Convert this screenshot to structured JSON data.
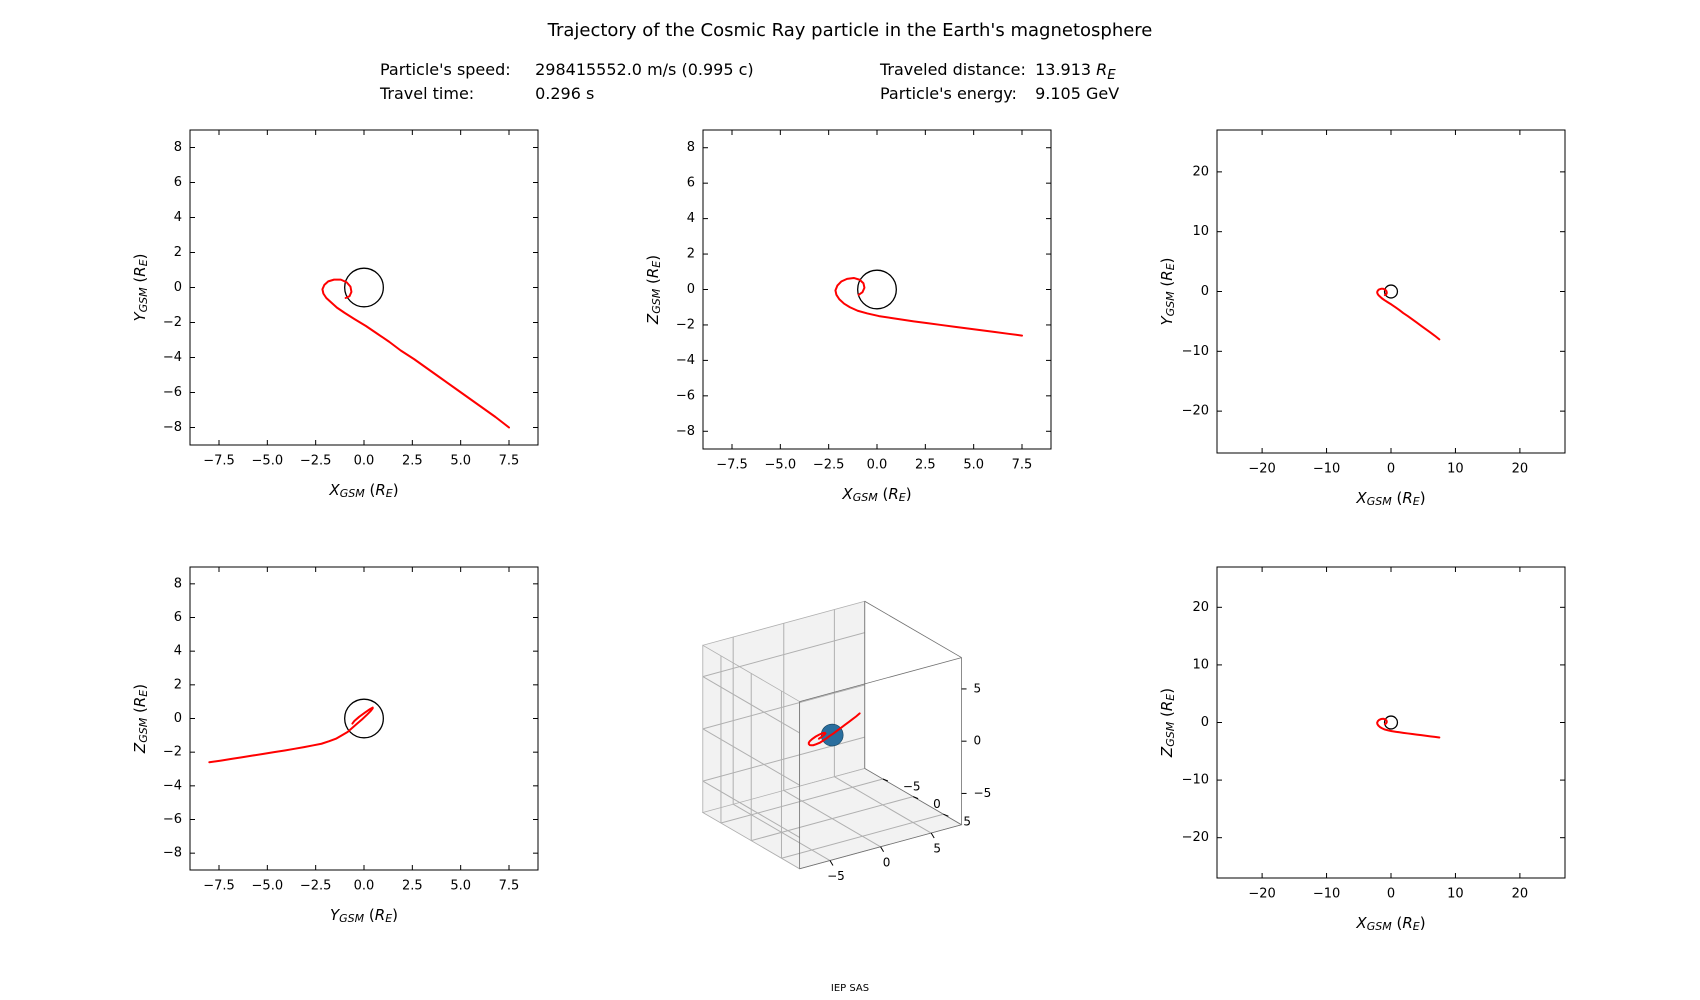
{
  "title": "Trajectory of the Cosmic Ray particle in the Earth's magnetosphere",
  "info": {
    "speed_label": "Particle's speed:",
    "speed_value": "298415552.0 m/s (0.995 c)",
    "time_label": "Travel time:",
    "time_value": "0.296 s",
    "distance_label": "Traveled distance:",
    "distance_value_prefix": "13.913 ",
    "distance_value_unit": "R",
    "distance_value_sub": "E",
    "energy_label": "Particle's energy:",
    "energy_value": "9.105 GeV"
  },
  "footer": "IEP SAS",
  "style": {
    "background_color": "#ffffff",
    "trajectory_color": "#ff0000",
    "trajectory_width": 2.0,
    "earth_outline_color": "#000000",
    "earth_outline_width": 1.3,
    "earth_fill_3d": "#2a6e9e",
    "axis_color": "#000000",
    "axis_width": 1.0,
    "tick_length": 5,
    "tick_fontsize": 13,
    "label_fontsize": 15,
    "title_fontsize": 18,
    "grid3d_color": "#b0b0b0",
    "grid3d_fill": "#f2f2f2"
  },
  "small_range": {
    "min": -9,
    "max": 9,
    "ticks": [
      -8,
      -6,
      -4,
      -2,
      0,
      2,
      4,
      6,
      8
    ],
    "x_label_ticks": [
      "−7.5",
      "−5.0",
      "−2.5",
      "0.0",
      "2.5",
      "5.0",
      "7.5"
    ],
    "x_label_vals": [
      -7.5,
      -5.0,
      -2.5,
      0.0,
      2.5,
      5.0,
      7.5
    ]
  },
  "large_range": {
    "min": -27,
    "max": 27,
    "ticks": [
      -20,
      -10,
      0,
      10,
      20
    ]
  },
  "trajectory": {
    "x": [
      7.5,
      6.8,
      6.1,
      5.4,
      4.7,
      4.0,
      3.3,
      2.6,
      1.9,
      1.3,
      0.7,
      0.1,
      -0.5,
      -1.0,
      -1.4,
      -1.7,
      -1.95,
      -2.1,
      -2.15,
      -2.05,
      -1.85,
      -1.55,
      -1.2,
      -0.9,
      -0.7,
      -0.65,
      -0.75,
      -0.95
    ],
    "y": [
      -8.0,
      -7.4,
      -6.85,
      -6.3,
      -5.75,
      -5.2,
      -4.65,
      -4.1,
      -3.6,
      -3.1,
      -2.65,
      -2.2,
      -1.8,
      -1.45,
      -1.15,
      -0.85,
      -0.6,
      -0.35,
      -0.1,
      0.15,
      0.35,
      0.45,
      0.45,
      0.3,
      0.05,
      -0.25,
      -0.5,
      -0.6
    ],
    "z": [
      -2.6,
      -2.5,
      -2.4,
      -2.3,
      -2.2,
      -2.1,
      -2.0,
      -1.9,
      -1.8,
      -1.7,
      -1.6,
      -1.5,
      -1.35,
      -1.2,
      -1.0,
      -0.8,
      -0.55,
      -0.3,
      -0.05,
      0.22,
      0.45,
      0.6,
      0.65,
      0.55,
      0.35,
      0.1,
      -0.15,
      -0.3
    ]
  },
  "earth_radius": 1.0,
  "panels": [
    {
      "id": "xy-small",
      "type": "2d",
      "xaxis": "x",
      "yaxis": "y",
      "range": "small",
      "xlabel_main": "X",
      "xlabel_sub": "GSM",
      "xlabel_paren": "R",
      "xlabel_paren_sub": "E",
      "ylabel_main": "Y",
      "ylabel_sub": "GSM",
      "ylabel_paren": "R",
      "ylabel_paren_sub": "E"
    },
    {
      "id": "xz-small",
      "type": "2d",
      "xaxis": "x",
      "yaxis": "z",
      "range": "small",
      "xlabel_main": "X",
      "xlabel_sub": "GSM",
      "xlabel_paren": "R",
      "xlabel_paren_sub": "E",
      "ylabel_main": "Z",
      "ylabel_sub": "GSM",
      "ylabel_paren": "R",
      "ylabel_paren_sub": "E"
    },
    {
      "id": "xy-large",
      "type": "2d",
      "xaxis": "x",
      "yaxis": "y",
      "range": "large",
      "xlabel_main": "X",
      "xlabel_sub": "GSM",
      "xlabel_paren": "R",
      "xlabel_paren_sub": "E",
      "ylabel_main": "Y",
      "ylabel_sub": "GSM",
      "ylabel_paren": "R",
      "ylabel_paren_sub": "E"
    },
    {
      "id": "yz-small",
      "type": "2d",
      "xaxis": "y",
      "yaxis": "z",
      "range": "small",
      "xlabel_main": "Y",
      "xlabel_sub": "GSM",
      "xlabel_paren": "R",
      "xlabel_paren_sub": "E",
      "ylabel_main": "Z",
      "ylabel_sub": "GSM",
      "ylabel_paren": "R",
      "ylabel_paren_sub": "E"
    },
    {
      "id": "xyz-3d",
      "type": "3d",
      "ticks": [
        -5,
        0,
        5
      ],
      "range_min": -8,
      "range_max": 8,
      "right_ticks": [
        -5,
        0,
        5
      ]
    },
    {
      "id": "xz-large",
      "type": "2d",
      "xaxis": "x",
      "yaxis": "z",
      "range": "large",
      "xlabel_main": "X",
      "xlabel_sub": "GSM",
      "xlabel_paren": "R",
      "xlabel_paren_sub": "E",
      "ylabel_main": "Z",
      "ylabel_sub": "GSM",
      "ylabel_paren": "R",
      "ylabel_paren_sub": "E"
    }
  ]
}
